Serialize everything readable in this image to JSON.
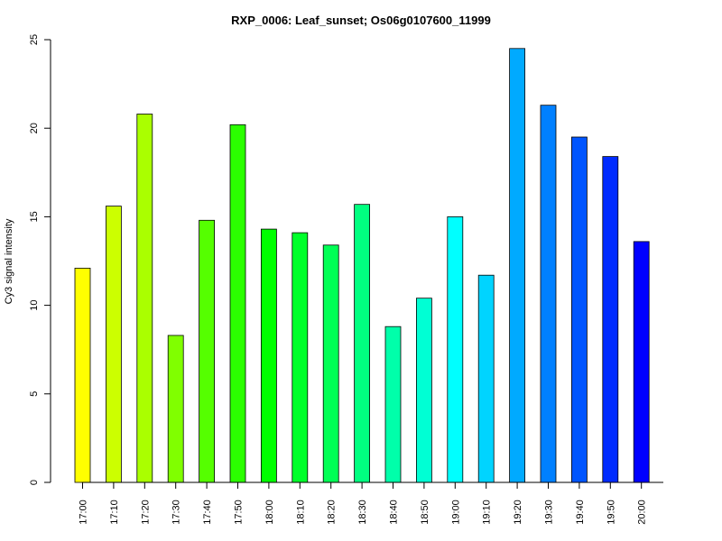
{
  "chart_data": {
    "type": "bar",
    "title": "RXP_0006: Leaf_sunset; Os06g0107600_11999",
    "xlabel": "",
    "ylabel": "Cy3 signal intensity",
    "ylim": [
      0,
      25
    ],
    "yticks": [
      "0",
      "5",
      "10",
      "15",
      "20",
      "25"
    ],
    "grid": false,
    "categories": [
      "17:00",
      "17:10",
      "17:20",
      "17:30",
      "17:40",
      "17:50",
      "18:00",
      "18:10",
      "18:20",
      "18:30",
      "18:40",
      "18:50",
      "19:00",
      "19:10",
      "19:20",
      "19:30",
      "19:40",
      "19:50",
      "20:00"
    ],
    "values": [
      12.1,
      15.6,
      20.8,
      8.3,
      14.8,
      20.2,
      14.3,
      14.1,
      13.4,
      15.7,
      8.8,
      10.4,
      15.0,
      11.7,
      24.5,
      21.3,
      19.5,
      18.4,
      13.6
    ],
    "colors": [
      "#ffff00",
      "#ccff00",
      "#aaff00",
      "#80ff00",
      "#55ff00",
      "#2bff00",
      "#00ff00",
      "#00ff2b",
      "#00ff55",
      "#00ff80",
      "#00ffaa",
      "#00ffd4",
      "#00ffff",
      "#00d4ff",
      "#00aaff",
      "#0080ff",
      "#0055ff",
      "#002bff",
      "#0000ff"
    ]
  }
}
